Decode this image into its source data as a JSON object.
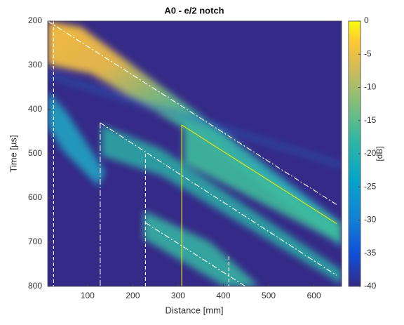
{
  "chart_data": {
    "type": "heatmap",
    "title": "A0 - e/2 notch",
    "x_label": "Distance [mm]",
    "y_label": "Time [µs]",
    "xlim": [
      12,
      661
    ],
    "xticks": [
      100,
      200,
      300,
      400,
      500,
      600
    ],
    "ylim": [
      200,
      800
    ],
    "yticks": [
      200,
      300,
      400,
      500,
      600,
      700,
      800
    ],
    "y_reversed": true,
    "colorbar": {
      "label": "[dB]",
      "lim": [
        -40,
        0
      ],
      "ticks": [
        0,
        -5,
        -10,
        -15,
        -20,
        -25,
        -30,
        -35,
        -40
      ]
    },
    "overlay_lines": [
      {
        "color": "#ffffff",
        "style": "dash-dot",
        "x": [
          12,
          650
        ],
        "y": [
          200,
          615
        ]
      },
      {
        "color": "#ffffff",
        "style": "dash-dot",
        "x": [
          128,
          650
        ],
        "y": [
          430,
          775
        ]
      },
      {
        "color": "#ffffff",
        "style": "dash-dot",
        "x": [
          228,
          449
        ],
        "y": [
          656,
          800
        ]
      },
      {
        "color": "#ffffff",
        "style": "dashed",
        "x": [
          25,
          25
        ],
        "y": [
          200,
          800
        ]
      },
      {
        "color": "#ffffff",
        "style": "dash-dot",
        "x": [
          128,
          128
        ],
        "y": [
          430,
          800
        ]
      },
      {
        "color": "#ffffff",
        "style": "dashed",
        "x": [
          228,
          228
        ],
        "y": [
          500,
          800
        ]
      },
      {
        "color": "#ffffff",
        "style": "dashed",
        "x": [
          412,
          412
        ],
        "y": [
          732,
          800
        ]
      },
      {
        "color": "#f2e600",
        "style": "solid",
        "x": [
          308,
          308
        ],
        "y": [
          435,
          800
        ]
      },
      {
        "color": "#f2e600",
        "style": "solid",
        "x": [
          308,
          650
        ],
        "y": [
          435,
          658
        ]
      }
    ]
  }
}
